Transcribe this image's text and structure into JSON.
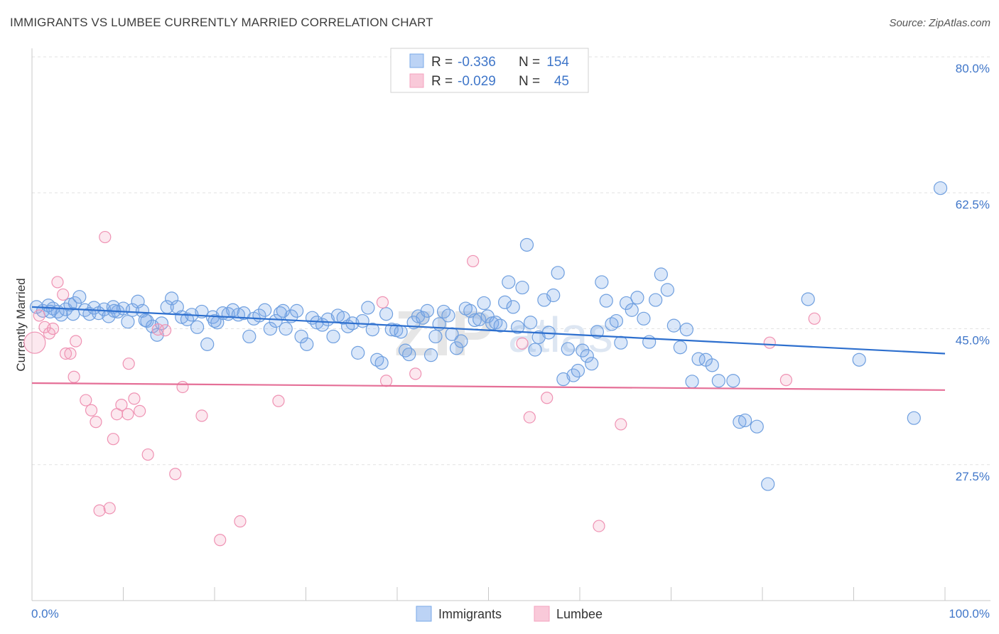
{
  "header": {
    "title": "IMMIGRANTS VS LUMBEE CURRENTLY MARRIED CORRELATION CHART",
    "source": "Source: ZipAtlas.com"
  },
  "watermark": {
    "zip": "ZIP",
    "atlas": "atlas"
  },
  "colors": {
    "blue": "#7aaae8",
    "pink": "#f4a3bf",
    "blue_line": "#2d6fce",
    "pink_line": "#e56f97",
    "tick": "#3f76c9"
  },
  "legend": {
    "rows": [
      {
        "r_label": "R = ",
        "r_value": "-0.336",
        "n_label": "N = ",
        "n_value": "154"
      },
      {
        "r_label": "R = ",
        "r_value": "-0.029",
        "n_label": "N = ",
        "n_value": "45"
      }
    ],
    "bottom": [
      "Immigrants",
      "Lumbee"
    ]
  },
  "chart_data": {
    "type": "scatter",
    "title": "IMMIGRANTS VS LUMBEE CURRENTLY MARRIED CORRELATION CHART",
    "xlabel": "",
    "ylabel": "Currently Married",
    "xlim": [
      0,
      100
    ],
    "ylim": [
      10,
      80
    ],
    "x_ticks": [
      "0.0%",
      "100.0%"
    ],
    "y_ticks": [
      {
        "value": 27.5,
        "label": "27.5%"
      },
      {
        "value": 45.0,
        "label": "45.0%"
      },
      {
        "value": 62.5,
        "label": "62.5%"
      },
      {
        "value": 80.0,
        "label": "80.0%"
      }
    ],
    "grid": "horizontal dashed",
    "legend_position": "top-center",
    "series": [
      {
        "name": "Immigrants",
        "color": "#7aaae8",
        "trend": {
          "x": [
            0,
            100
          ],
          "y": [
            47.8,
            41.8
          ]
        },
        "points": [
          [
            0.5,
            47.8
          ],
          [
            1.2,
            47.3
          ],
          [
            1.8,
            48.0
          ],
          [
            2.3,
            47.6
          ],
          [
            2.8,
            47.2
          ],
          [
            3.2,
            46.8
          ],
          [
            3.7,
            47.5
          ],
          [
            4.2,
            48.1
          ],
          [
            4.7,
            48.3
          ],
          [
            5.2,
            49.1
          ],
          [
            5.8,
            47.4
          ],
          [
            6.3,
            46.9
          ],
          [
            6.8,
            47.7
          ],
          [
            7.3,
            47.0
          ],
          [
            7.9,
            47.5
          ],
          [
            8.4,
            46.6
          ],
          [
            8.9,
            47.8
          ],
          [
            9.4,
            47.2
          ],
          [
            10.0,
            47.6
          ],
          [
            10.5,
            45.9
          ],
          [
            11.0,
            47.4
          ],
          [
            11.6,
            48.5
          ],
          [
            12.1,
            47.3
          ],
          [
            12.6,
            46.0
          ],
          [
            13.2,
            45.3
          ],
          [
            13.7,
            44.2
          ],
          [
            14.2,
            45.7
          ],
          [
            14.8,
            47.8
          ],
          [
            15.3,
            48.9
          ],
          [
            15.9,
            47.8
          ],
          [
            16.4,
            46.5
          ],
          [
            17.0,
            46.2
          ],
          [
            17.5,
            46.8
          ],
          [
            18.1,
            45.2
          ],
          [
            18.6,
            47.2
          ],
          [
            19.2,
            43.0
          ],
          [
            19.8,
            46.5
          ],
          [
            20.3,
            45.8
          ],
          [
            20.9,
            47.0
          ],
          [
            21.5,
            46.9
          ],
          [
            22.0,
            47.4
          ],
          [
            22.6,
            46.8
          ],
          [
            23.2,
            47.0
          ],
          [
            23.8,
            44.0
          ],
          [
            24.3,
            46.3
          ],
          [
            24.9,
            46.7
          ],
          [
            25.5,
            47.4
          ],
          [
            26.1,
            45.0
          ],
          [
            26.7,
            46.0
          ],
          [
            27.2,
            47.0
          ],
          [
            27.8,
            45.0
          ],
          [
            28.4,
            46.6
          ],
          [
            29.0,
            47.3
          ],
          [
            29.5,
            44.0
          ],
          [
            30.1,
            43.0
          ],
          [
            30.7,
            46.4
          ],
          [
            31.2,
            45.8
          ],
          [
            31.8,
            45.5
          ],
          [
            32.4,
            46.2
          ],
          [
            33.0,
            44.0
          ],
          [
            33.5,
            46.7
          ],
          [
            34.1,
            46.4
          ],
          [
            34.6,
            45.3
          ],
          [
            35.1,
            45.7
          ],
          [
            35.7,
            41.9
          ],
          [
            36.2,
            46.0
          ],
          [
            36.8,
            47.7
          ],
          [
            37.3,
            44.9
          ],
          [
            37.8,
            41.0
          ],
          [
            38.3,
            40.6
          ],
          [
            38.8,
            46.9
          ],
          [
            39.4,
            44.9
          ],
          [
            39.9,
            44.8
          ],
          [
            40.4,
            44.6
          ],
          [
            40.9,
            42.2
          ],
          [
            41.3,
            41.7
          ],
          [
            41.8,
            45.8
          ],
          [
            42.3,
            46.6
          ],
          [
            42.8,
            46.4
          ],
          [
            43.3,
            47.3
          ],
          [
            43.7,
            41.6
          ],
          [
            44.2,
            44.0
          ],
          [
            44.6,
            45.6
          ],
          [
            45.1,
            47.2
          ],
          [
            45.6,
            46.7
          ],
          [
            46.0,
            44.3
          ],
          [
            46.5,
            42.5
          ],
          [
            47.0,
            43.4
          ],
          [
            47.5,
            47.6
          ],
          [
            48.0,
            47.3
          ],
          [
            48.5,
            46.1
          ],
          [
            49.0,
            46.2
          ],
          [
            49.5,
            48.3
          ],
          [
            49.9,
            46.6
          ],
          [
            50.4,
            45.7
          ],
          [
            50.8,
            45.8
          ],
          [
            51.3,
            45.4
          ],
          [
            51.8,
            48.4
          ],
          [
            52.2,
            51.0
          ],
          [
            52.7,
            47.8
          ],
          [
            53.2,
            45.2
          ],
          [
            53.7,
            50.3
          ],
          [
            54.2,
            55.8
          ],
          [
            54.6,
            45.8
          ],
          [
            55.1,
            42.3
          ],
          [
            55.5,
            43.9
          ],
          [
            56.1,
            48.7
          ],
          [
            56.6,
            44.5
          ],
          [
            57.1,
            49.3
          ],
          [
            57.6,
            52.2
          ],
          [
            58.2,
            38.5
          ],
          [
            58.7,
            42.4
          ],
          [
            59.3,
            39.0
          ],
          [
            59.8,
            39.6
          ],
          [
            60.3,
            42.2
          ],
          [
            60.8,
            41.5
          ],
          [
            61.3,
            40.5
          ],
          [
            61.9,
            44.6
          ],
          [
            62.4,
            51.0
          ],
          [
            62.9,
            48.6
          ],
          [
            63.5,
            45.6
          ],
          [
            64.0,
            46.0
          ],
          [
            64.5,
            43.2
          ],
          [
            65.1,
            48.3
          ],
          [
            65.7,
            47.4
          ],
          [
            66.3,
            49.0
          ],
          [
            67.0,
            46.3
          ],
          [
            67.6,
            43.3
          ],
          [
            68.3,
            48.7
          ],
          [
            68.9,
            52.0
          ],
          [
            69.6,
            50.0
          ],
          [
            70.3,
            45.4
          ],
          [
            71.0,
            42.6
          ],
          [
            71.7,
            44.9
          ],
          [
            72.3,
            38.2
          ],
          [
            73.0,
            41.1
          ],
          [
            73.8,
            41.0
          ],
          [
            74.5,
            40.3
          ],
          [
            75.2,
            38.3
          ],
          [
            76.8,
            38.3
          ],
          [
            77.5,
            33.0
          ],
          [
            78.1,
            33.2
          ],
          [
            79.4,
            32.4
          ],
          [
            80.6,
            25.0
          ],
          [
            85.0,
            48.8
          ],
          [
            90.6,
            41.0
          ],
          [
            96.6,
            33.5
          ],
          [
            99.5,
            63.1
          ],
          [
            27.5,
            47.3
          ],
          [
            20.0,
            46.0
          ],
          [
            12.4,
            46.1
          ],
          [
            9.0,
            47.3
          ],
          [
            4.5,
            46.9
          ],
          [
            2.0,
            47.2
          ]
        ]
      },
      {
        "name": "Lumbee",
        "color": "#f4a3bf",
        "trend": {
          "x": [
            0,
            100
          ],
          "y": [
            38.0,
            37.1
          ]
        },
        "points": [
          [
            0.3,
            43.2
          ],
          [
            0.8,
            46.7
          ],
          [
            1.4,
            45.2
          ],
          [
            1.9,
            44.4
          ],
          [
            2.3,
            45.0
          ],
          [
            2.8,
            51.0
          ],
          [
            3.4,
            49.4
          ],
          [
            3.7,
            41.8
          ],
          [
            4.2,
            41.8
          ],
          [
            4.8,
            43.4
          ],
          [
            4.6,
            38.8
          ],
          [
            5.9,
            35.8
          ],
          [
            6.5,
            34.5
          ],
          [
            7.0,
            33.0
          ],
          [
            7.4,
            21.6
          ],
          [
            8.0,
            56.8
          ],
          [
            8.5,
            21.9
          ],
          [
            8.9,
            30.8
          ],
          [
            9.3,
            34.0
          ],
          [
            9.8,
            35.2
          ],
          [
            10.5,
            34.0
          ],
          [
            10.6,
            40.5
          ],
          [
            11.2,
            36.0
          ],
          [
            11.8,
            34.4
          ],
          [
            12.7,
            28.8
          ],
          [
            13.8,
            44.9
          ],
          [
            14.6,
            44.8
          ],
          [
            15.7,
            26.3
          ],
          [
            16.5,
            37.5
          ],
          [
            18.6,
            33.8
          ],
          [
            20.6,
            17.8
          ],
          [
            22.8,
            20.2
          ],
          [
            27.0,
            35.7
          ],
          [
            38.4,
            48.4
          ],
          [
            38.8,
            38.3
          ],
          [
            42.0,
            39.2
          ],
          [
            48.3,
            53.7
          ],
          [
            53.7,
            43.1
          ],
          [
            54.5,
            33.6
          ],
          [
            56.4,
            36.1
          ],
          [
            62.1,
            19.6
          ],
          [
            64.5,
            32.7
          ],
          [
            80.8,
            43.2
          ],
          [
            82.6,
            38.4
          ],
          [
            85.7,
            46.3
          ]
        ]
      }
    ]
  }
}
